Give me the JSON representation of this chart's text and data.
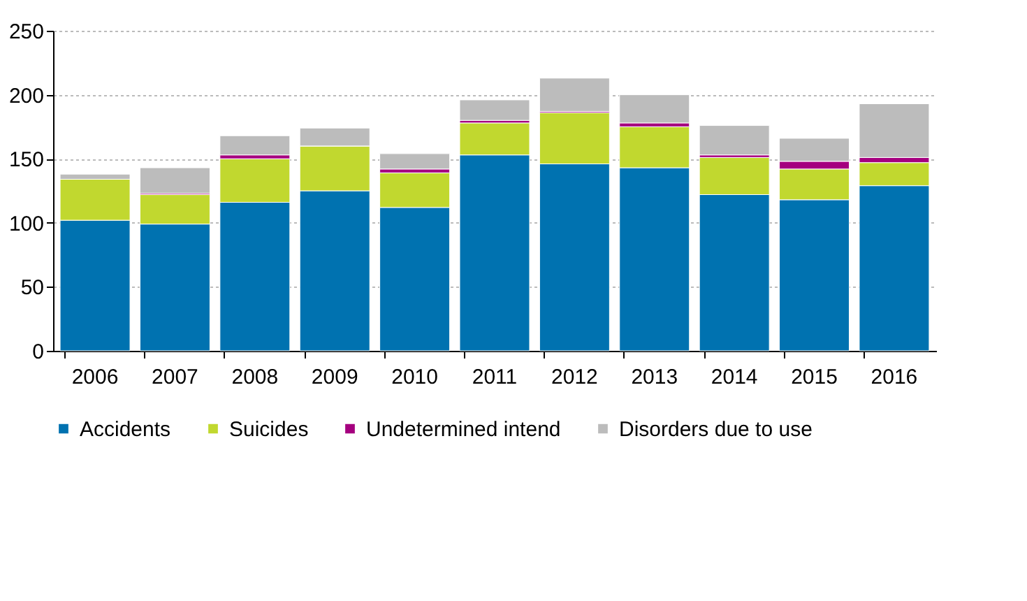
{
  "chart_data": {
    "type": "bar",
    "stacked": true,
    "categories": [
      "2006",
      "2007",
      "2008",
      "2009",
      "2010",
      "2011",
      "2012",
      "2013",
      "2014",
      "2015",
      "2016"
    ],
    "series": [
      {
        "name": "Accidents",
        "color": "#0072b0",
        "values": [
          102,
          99,
          116,
          125,
          112,
          153,
          146,
          143,
          122,
          118,
          129
        ]
      },
      {
        "name": "Suicides",
        "color": "#c1d82f",
        "values": [
          32,
          23,
          34,
          35,
          27,
          25,
          40,
          32,
          29,
          24,
          18
        ]
      },
      {
        "name": "Undetermined intend",
        "color": "#a5007f",
        "values": [
          0,
          1,
          3,
          0,
          3,
          2,
          1,
          3,
          2,
          6,
          4
        ]
      },
      {
        "name": "Disorders due to use",
        "color": "#bcbcbc",
        "values": [
          4,
          20,
          15,
          14,
          12,
          16,
          26,
          22,
          23,
          18,
          42
        ]
      }
    ],
    "ylim": [
      0,
      250
    ],
    "yticks": [
      0,
      50,
      100,
      150,
      200,
      250
    ],
    "grid": "y",
    "legend": "bottom left"
  }
}
